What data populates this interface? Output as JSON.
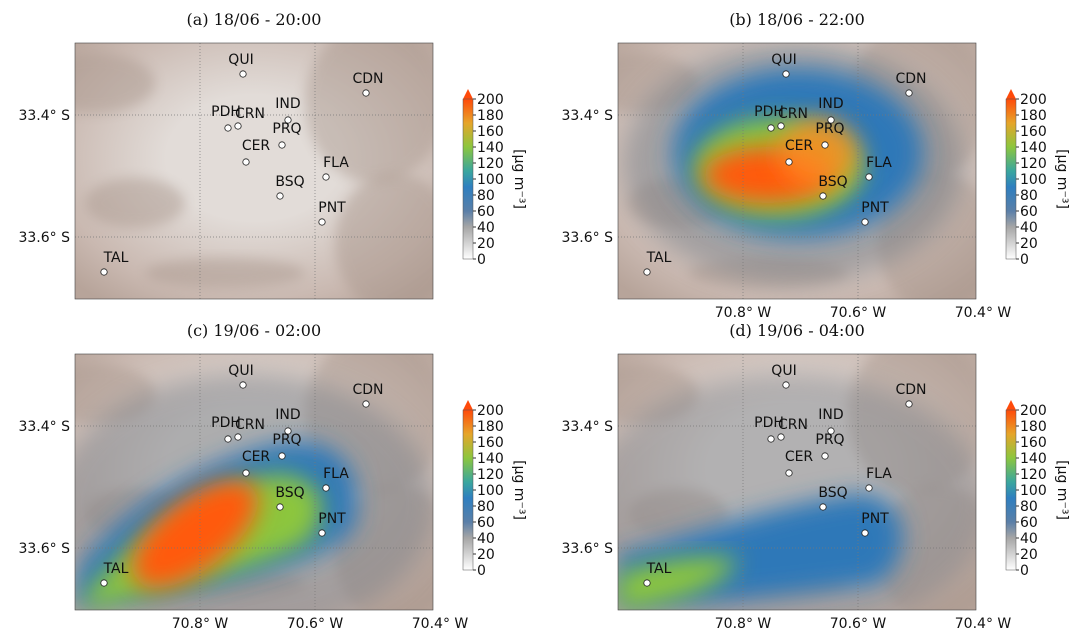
{
  "panels": [
    {
      "title": "(a) 18/06 - 20:00"
    },
    {
      "title": "(b) 18/06 - 22:00"
    },
    {
      "title": "(c) 19/06 - 02:00"
    },
    {
      "title": "(d) 19/06 - 04:00"
    }
  ],
  "stations": [
    "QUI",
    "CDN",
    "IND",
    "PDH",
    "CRN",
    "PRQ",
    "CER",
    "FLA",
    "BSQ",
    "PNT",
    "TAL"
  ],
  "lat_ticks": [
    "33.4° S",
    "33.6° S"
  ],
  "lon_ticks": [
    "70.8° W",
    "70.6° W",
    "70.4° W"
  ],
  "colorbar": {
    "label": "[µg m⁻³]",
    "ticks": [
      0,
      20,
      40,
      60,
      80,
      100,
      120,
      140,
      160,
      180,
      200
    ]
  }
}
